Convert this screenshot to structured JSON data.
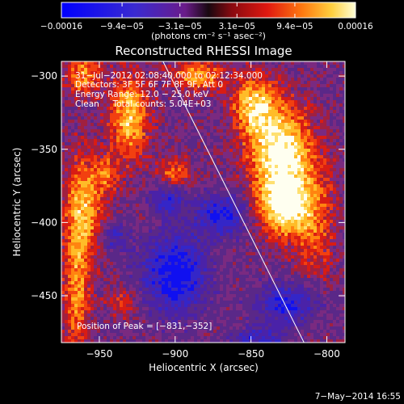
{
  "chart_data": {
    "type": "heatmap",
    "title": "Reconstructed RHESSI Image",
    "xlabel": "Heliocentric X (arcsec)",
    "ylabel": "Heliocentric Y (arcsec)",
    "xlim": [
      -975,
      -788
    ],
    "ylim": [
      -482,
      -290
    ],
    "x_ticks": [
      {
        "value": -950,
        "label": "−950"
      },
      {
        "value": -900,
        "label": "−900"
      },
      {
        "value": -850,
        "label": "−850"
      },
      {
        "value": -800,
        "label": "−800"
      }
    ],
    "y_ticks": [
      {
        "value": -300,
        "label": "−300"
      },
      {
        "value": -350,
        "label": "−350"
      },
      {
        "value": -400,
        "label": "−400"
      },
      {
        "value": -450,
        "label": "−450"
      }
    ],
    "colorbar": {
      "min": -0.00016,
      "max": 0.00016,
      "ticks": [
        {
          "value": -0.00016,
          "label": "−0.00016"
        },
        {
          "value": -9.4e-05,
          "label": "−9.4e−05"
        },
        {
          "value": -3.1e-05,
          "label": "−3.1e−05"
        },
        {
          "value": 3.1e-05,
          "label": "3.1e−05"
        },
        {
          "value": 9.4e-05,
          "label": "9.4e−05"
        },
        {
          "value": 0.00016,
          "label": "0.00016"
        }
      ],
      "unit_label": "(photons cm⁻² s⁻¹ asec⁻²)"
    },
    "annotations": [
      "31−Jul−2012 02:08:40.000 to 02:12:34.000",
      "Detectors: 3F 5F 6F 7F 8F 9F, Att 0",
      "Energy Range: 12.0 − 25.0 keV",
      "Clean     Total counts: 5.04E+03"
    ],
    "peak_label": "Position of Peak = [−831,−352]",
    "peak": [
      -831,
      -352
    ],
    "limb_line": [
      [
        -908,
        -290
      ],
      [
        -815,
        -482
      ]
    ],
    "grid": false
  },
  "footer": {
    "date": "7−May−2014 16:55"
  }
}
